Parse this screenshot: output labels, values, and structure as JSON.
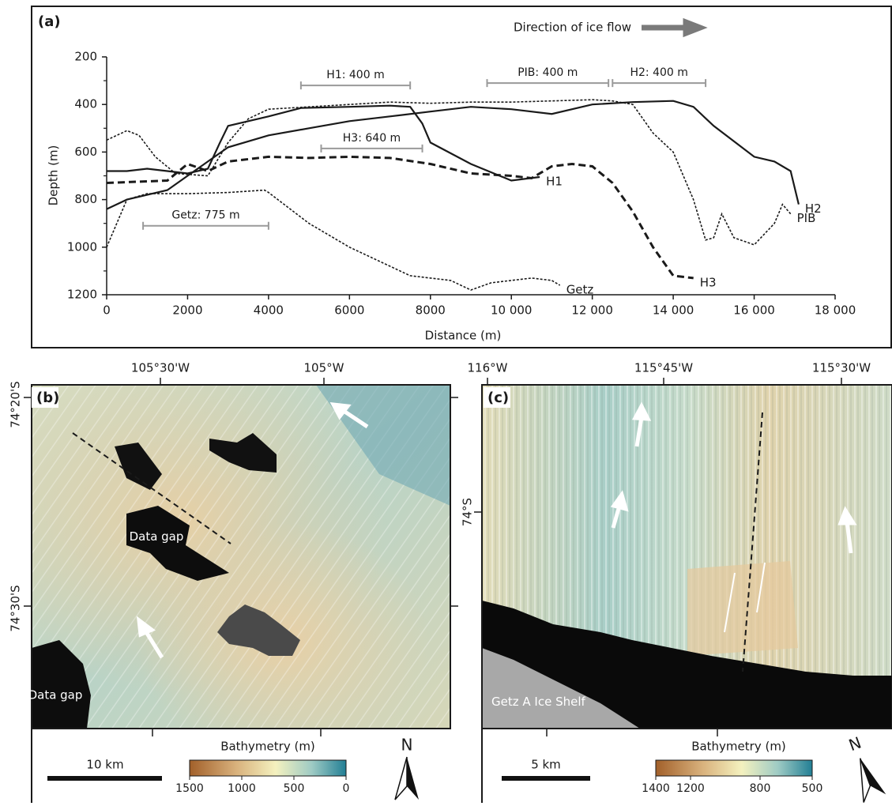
{
  "chart_data": {
    "type": "line",
    "panel_label": "(a)",
    "note": "Direction of ice flow",
    "xlabel": "Distance (m)",
    "ylabel": "Depth (m)",
    "xlim": [
      0,
      18000
    ],
    "ylim": [
      200,
      1200
    ],
    "invert_y": true,
    "xticks": [
      0,
      2000,
      4000,
      6000,
      8000,
      {
        "value": 10000,
        "label": "10 000"
      },
      {
        "value": 12000,
        "label": "12 000"
      },
      {
        "value": 14000,
        "label": "14 000"
      },
      {
        "value": 16000,
        "label": "16 000"
      },
      {
        "value": 18000,
        "label": "18 000"
      }
    ],
    "yticks": [
      200,
      400,
      600,
      800,
      1000,
      1200
    ],
    "yminorticks": [
      300,
      500,
      700,
      900,
      1100
    ],
    "series": [
      {
        "name": "H1",
        "color": "#1a1a1a",
        "style": "solid",
        "x": [
          0,
          500,
          1000,
          1500,
          2000,
          2500,
          2800,
          3000,
          4000,
          4800,
          6000,
          7000,
          7500,
          7800,
          8000,
          9000,
          10000,
          10700
        ],
        "values": [
          680,
          680,
          670,
          680,
          690,
          670,
          560,
          490,
          450,
          415,
          410,
          405,
          410,
          480,
          560,
          650,
          720,
          705
        ]
      },
      {
        "name": "H2",
        "color": "#1a1a1a",
        "style": "solid",
        "x": [
          0,
          500,
          1000,
          1500,
          2000,
          2500,
          3000,
          4000,
          5000,
          6000,
          7000,
          8000,
          9000,
          10000,
          11000,
          12000,
          13000,
          14000,
          14500,
          15000,
          16000,
          16500,
          16900,
          17100
        ],
        "values": [
          840,
          800,
          780,
          760,
          700,
          640,
          580,
          530,
          500,
          470,
          450,
          430,
          410,
          420,
          440,
          400,
          390,
          385,
          410,
          490,
          620,
          640,
          680,
          820
        ]
      },
      {
        "name": "H3",
        "color": "#1a1a1a",
        "style": "dashed",
        "x": [
          0,
          1500,
          2000,
          2500,
          3000,
          4000,
          5000,
          6000,
          7000,
          8000,
          9000,
          10000,
          10500,
          11000,
          11500,
          12000,
          12500,
          13000,
          13500,
          14000,
          14500
        ],
        "values": [
          730,
          720,
          650,
          680,
          640,
          620,
          625,
          620,
          625,
          650,
          690,
          700,
          710,
          660,
          650,
          660,
          730,
          850,
          1000,
          1120,
          1130
        ]
      },
      {
        "name": "PIB",
        "color": "#1a1a1a",
        "style": "dotted",
        "x": [
          0,
          500,
          800,
          1200,
          1700,
          2500,
          3000,
          3500,
          4000,
          5000,
          6000,
          7000,
          8000,
          9000,
          10000,
          11000,
          12000,
          12500,
          13000,
          13500,
          14000,
          14500,
          14800,
          15000,
          15200,
          15500,
          16000,
          16500,
          16700,
          16900
        ],
        "values": [
          550,
          510,
          530,
          620,
          690,
          700,
          560,
          460,
          420,
          410,
          400,
          390,
          395,
          390,
          390,
          385,
          380,
          385,
          400,
          520,
          600,
          800,
          970,
          960,
          860,
          960,
          990,
          900,
          820,
          860
        ]
      },
      {
        "name": "Getz",
        "color": "#1a1a1a",
        "style": "dotted",
        "x": [
          0,
          500,
          1000,
          2000,
          3000,
          3900,
          4000,
          5000,
          6000,
          7000,
          7500,
          8000,
          8500,
          9000,
          9500,
          10000,
          10500,
          11000,
          11200
        ],
        "values": [
          1000,
          800,
          775,
          775,
          770,
          760,
          770,
          900,
          1000,
          1080,
          1120,
          1130,
          1140,
          1180,
          1150,
          1140,
          1130,
          1140,
          1160
        ]
      }
    ],
    "annotations": [
      {
        "text": "H1: 400 m",
        "x": [
          4800,
          7500
        ],
        "y": 320
      },
      {
        "text": "PIB: 400 m",
        "x": [
          9400,
          12400
        ],
        "y": 310
      },
      {
        "text": "H2: 400 m",
        "x": [
          12500,
          14800
        ],
        "y": 310
      },
      {
        "text": "H3: 640 m",
        "x": [
          5300,
          7800
        ],
        "y": 585
      },
      {
        "text": "Getz: 775 m",
        "x": [
          900,
          4000
        ],
        "y": 910
      }
    ]
  },
  "map_b": {
    "panel_label": "(b)",
    "lon_labels": [
      "105°30'W",
      "105°W"
    ],
    "lat_labels": [
      "74°20'S",
      "74°30'S"
    ],
    "gap_labels": [
      "Data gap",
      "Data gap"
    ],
    "scale_bar": "10 km",
    "colorbar": {
      "title": "Bathymetry (m)",
      "clim": [
        1500,
        0
      ],
      "ticks": [
        1500,
        1000,
        500,
        0
      ]
    },
    "north": "N"
  },
  "map_c": {
    "panel_label": "(c)",
    "lon_labels": [
      "116°W",
      "115°45'W",
      "115°30'W"
    ],
    "lat_labels": [
      "74°S"
    ],
    "shelf_label": "Getz A Ice Shelf",
    "scale_bar": "5 km",
    "colorbar": {
      "title": "Bathymetry (m)",
      "clim": [
        1400,
        500
      ],
      "ticks": [
        1400,
        1200,
        800,
        500
      ]
    },
    "north": "N"
  }
}
